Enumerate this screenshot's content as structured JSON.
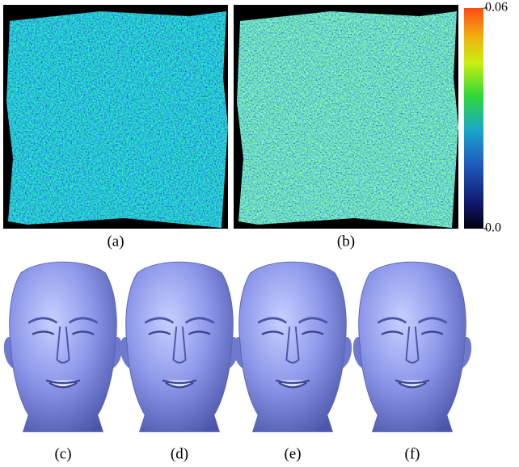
{
  "error_maps": [
    "(a)",
    "(b)"
  ],
  "renders": [
    "(c)",
    "(d)",
    "(e)",
    "(f)"
  ],
  "colorbar": {
    "ticks": [
      0.06,
      {
        "value": 0,
        "label": "0.0"
      }
    ]
  }
}
